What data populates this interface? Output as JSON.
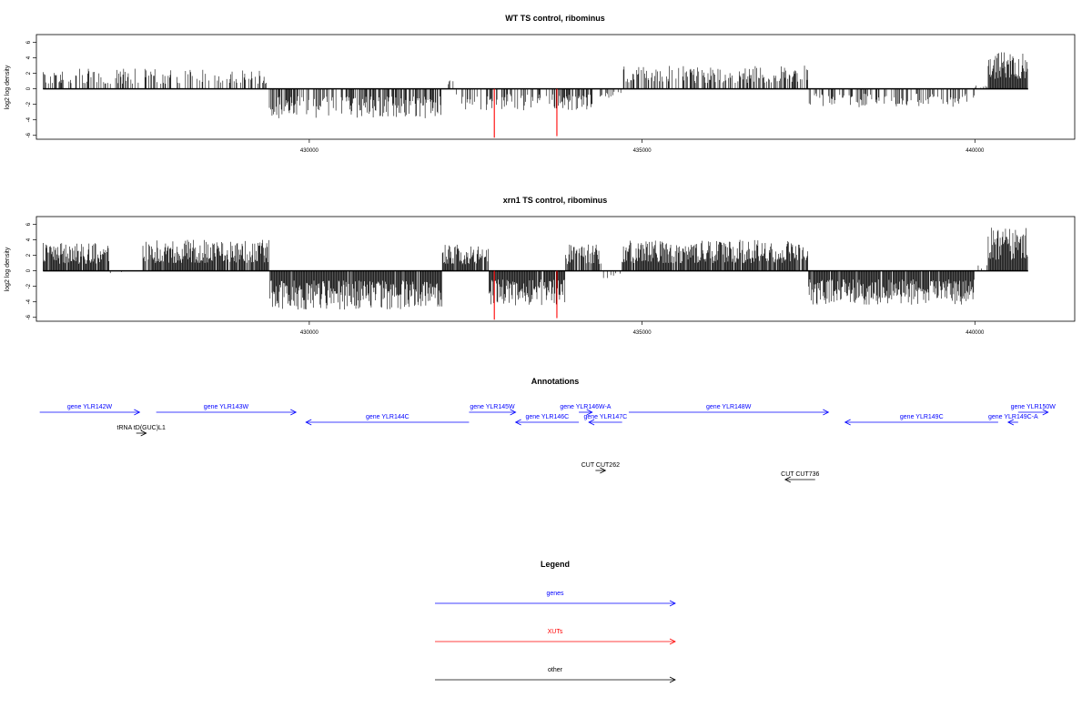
{
  "colors": {
    "genes": "#0000ff",
    "xuts": "#ff0000",
    "other": "#000000",
    "bars": "#000000"
  },
  "chart_data": [
    {
      "type": "bar",
      "title": "WT TS control, ribominus",
      "ylabel": "log2 log density",
      "xlim": [
        425900,
        441500
      ],
      "ylim": [
        -6.5,
        7
      ],
      "y_ticks": [
        "6",
        "4",
        "2",
        "0",
        "-2",
        "-4",
        "-6"
      ],
      "x_ticks": [
        "430000",
        "435000",
        "440000"
      ],
      "data_start": 426000,
      "data_end": 440800,
      "segments": [
        {
          "start": 426000,
          "end": 429400,
          "sign": 1,
          "amp": 2.6,
          "density": 0.35
        },
        {
          "start": 429400,
          "end": 432000,
          "sign": -1,
          "amp": 3.8,
          "density": 0.6
        },
        {
          "start": 432000,
          "end": 432200,
          "sign": 1,
          "amp": 2.0,
          "density": 0.3
        },
        {
          "start": 432200,
          "end": 434300,
          "sign": -1,
          "amp": 2.8,
          "density": 0.5
        },
        {
          "start": 434300,
          "end": 434700,
          "sign": -1,
          "amp": 1.2,
          "density": 0.3
        },
        {
          "start": 434700,
          "end": 437500,
          "sign": 1,
          "amp": 3.0,
          "density": 0.5
        },
        {
          "start": 437500,
          "end": 440000,
          "sign": -1,
          "amp": 2.4,
          "density": 0.4
        },
        {
          "start": 440000,
          "end": 440200,
          "sign": 1,
          "amp": 0.6,
          "density": 0.2
        },
        {
          "start": 440200,
          "end": 440800,
          "sign": 1,
          "amp": 5.0,
          "density": 1.0
        }
      ],
      "red_bars": [
        {
          "x": 432780,
          "y": -6.3
        },
        {
          "x": 433720,
          "y": -6.1
        }
      ],
      "seed": 17
    },
    {
      "type": "bar",
      "title": "xrn1 TS control, ribominus",
      "ylabel": "log2 log density",
      "xlim": [
        425900,
        441500
      ],
      "ylim": [
        -6.5,
        7
      ],
      "y_ticks": [
        "6",
        "4",
        "2",
        "0",
        "-2",
        "-4",
        "-6"
      ],
      "x_ticks": [
        "430000",
        "435000",
        "440000"
      ],
      "data_start": 426000,
      "data_end": 440800,
      "segments": [
        {
          "start": 426000,
          "end": 427000,
          "sign": 1,
          "amp": 3.6,
          "density": 0.95
        },
        {
          "start": 427000,
          "end": 427500,
          "sign": -1,
          "amp": 0.5,
          "density": 0.08
        },
        {
          "start": 427500,
          "end": 429400,
          "sign": 1,
          "amp": 4.0,
          "density": 0.95
        },
        {
          "start": 429400,
          "end": 432000,
          "sign": -1,
          "amp": 5.0,
          "density": 0.95
        },
        {
          "start": 432000,
          "end": 432700,
          "sign": 1,
          "amp": 3.4,
          "density": 0.95
        },
        {
          "start": 432700,
          "end": 433850,
          "sign": -1,
          "amp": 4.5,
          "density": 0.95
        },
        {
          "start": 433850,
          "end": 434400,
          "sign": 1,
          "amp": 3.4,
          "density": 0.85
        },
        {
          "start": 434400,
          "end": 434700,
          "sign": -1,
          "amp": 1.2,
          "density": 0.3
        },
        {
          "start": 434700,
          "end": 437500,
          "sign": 1,
          "amp": 4.0,
          "density": 0.95
        },
        {
          "start": 437500,
          "end": 440000,
          "sign": -1,
          "amp": 4.4,
          "density": 0.95
        },
        {
          "start": 440000,
          "end": 440200,
          "sign": 1,
          "amp": 0.8,
          "density": 0.2
        },
        {
          "start": 440200,
          "end": 440800,
          "sign": 1,
          "amp": 5.6,
          "density": 1.0
        }
      ],
      "red_bars": [
        {
          "x": 432780,
          "y": -6.3
        },
        {
          "x": 433720,
          "y": -6.1
        }
      ],
      "seed": 41
    }
  ],
  "annotations": {
    "title": "Annotations",
    "features": [
      {
        "label": "gene YLR142W",
        "start": 425950,
        "end": 427450,
        "strand": "+",
        "row": 0,
        "kind": "genes"
      },
      {
        "label": "gene YLR143W",
        "start": 427700,
        "end": 429800,
        "strand": "+",
        "row": 0,
        "kind": "genes"
      },
      {
        "label": "gene YLR144C",
        "start": 429950,
        "end": 432400,
        "strand": "-",
        "row": 1,
        "kind": "genes"
      },
      {
        "label": "gene YLR145W",
        "start": 432400,
        "end": 433100,
        "strand": "+",
        "row": 0,
        "kind": "genes"
      },
      {
        "label": "gene YLR146C",
        "start": 433100,
        "end": 434050,
        "strand": "-",
        "row": 1,
        "kind": "genes"
      },
      {
        "label": "gene YLR146W-A",
        "start": 434050,
        "end": 434250,
        "strand": "+",
        "row": 0,
        "kind": "genes"
      },
      {
        "label": "gene YLR147C",
        "start": 434200,
        "end": 434700,
        "strand": "-",
        "row": 1,
        "kind": "genes"
      },
      {
        "label": "gene YLR148W",
        "start": 434800,
        "end": 437800,
        "strand": "+",
        "row": 0,
        "kind": "genes"
      },
      {
        "label": "gene YLR149C",
        "start": 438050,
        "end": 440350,
        "strand": "-",
        "row": 1,
        "kind": "genes"
      },
      {
        "label": "gene YLR149C-A",
        "start": 440500,
        "end": 440650,
        "strand": "-",
        "row": 1,
        "kind": "genes"
      },
      {
        "label": "gene YLR150W",
        "start": 440650,
        "end": 441100,
        "strand": "+",
        "row": 0,
        "kind": "genes"
      },
      {
        "label": "tRNA tD(GUC)L1",
        "start": 427400,
        "end": 427550,
        "strand": "+",
        "row": 2,
        "kind": "other"
      },
      {
        "label": "CUT CUT262",
        "start": 434300,
        "end": 434450,
        "strand": "+",
        "row": 3,
        "kind": "other"
      },
      {
        "label": "CUT CUT736",
        "start": 437150,
        "end": 437600,
        "strand": "-",
        "row": 4,
        "kind": "other"
      }
    ]
  },
  "legend": {
    "title": "Legend",
    "items": [
      {
        "label": "genes",
        "kind": "genes"
      },
      {
        "label": "XUTs",
        "kind": "xuts"
      },
      {
        "label": "other",
        "kind": "other"
      }
    ]
  }
}
